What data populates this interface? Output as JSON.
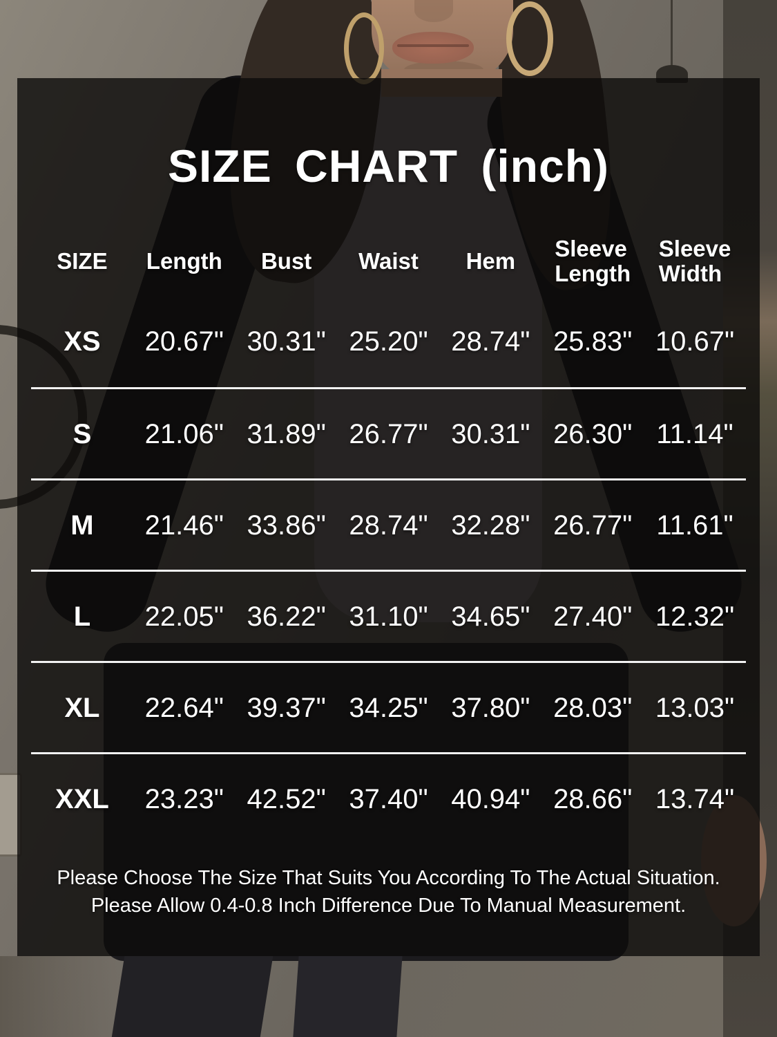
{
  "title": "SIZE CHART (inch)",
  "unit": "inch",
  "colors": {
    "text": "#ffffff",
    "divider": "#f2f2f2",
    "overlay": "rgba(13,11,10,0.8)"
  },
  "table": {
    "headers": [
      "SIZE",
      "Length",
      "Bust",
      "Waist",
      "Hem",
      "Sleeve\nLength",
      "Sleeve\nWidth"
    ],
    "rows": [
      {
        "size": "XS",
        "length": "20.67\"",
        "bust": "30.31\"",
        "waist": "25.20\"",
        "hem": "28.74\"",
        "sleeve_length": "25.83\"",
        "sleeve_width": "10.67\""
      },
      {
        "size": "S",
        "length": "21.06\"",
        "bust": "31.89\"",
        "waist": "26.77\"",
        "hem": "30.31\"",
        "sleeve_length": "26.30\"",
        "sleeve_width": "11.14\""
      },
      {
        "size": "M",
        "length": "21.46\"",
        "bust": "33.86\"",
        "waist": "28.74\"",
        "hem": "32.28\"",
        "sleeve_length": "26.77\"",
        "sleeve_width": "11.61\""
      },
      {
        "size": "L",
        "length": "22.05\"",
        "bust": "36.22\"",
        "waist": "31.10\"",
        "hem": "34.65\"",
        "sleeve_length": "27.40\"",
        "sleeve_width": "12.32\""
      },
      {
        "size": "XL",
        "length": "22.64\"",
        "bust": "39.37\"",
        "waist": "34.25\"",
        "hem": "37.80\"",
        "sleeve_length": "28.03\"",
        "sleeve_width": "13.03\""
      },
      {
        "size": "XXL",
        "length": "23.23\"",
        "bust": "42.52\"",
        "waist": "37.40\"",
        "hem": "40.94\"",
        "sleeve_length": "28.66\"",
        "sleeve_width": "13.74\""
      }
    ]
  },
  "note": {
    "line1": "Please Choose The Size That Suits You According To The Actual Situation.",
    "line2": "Please Allow 0.4-0.8 Inch Difference Due To Manual Measurement."
  }
}
